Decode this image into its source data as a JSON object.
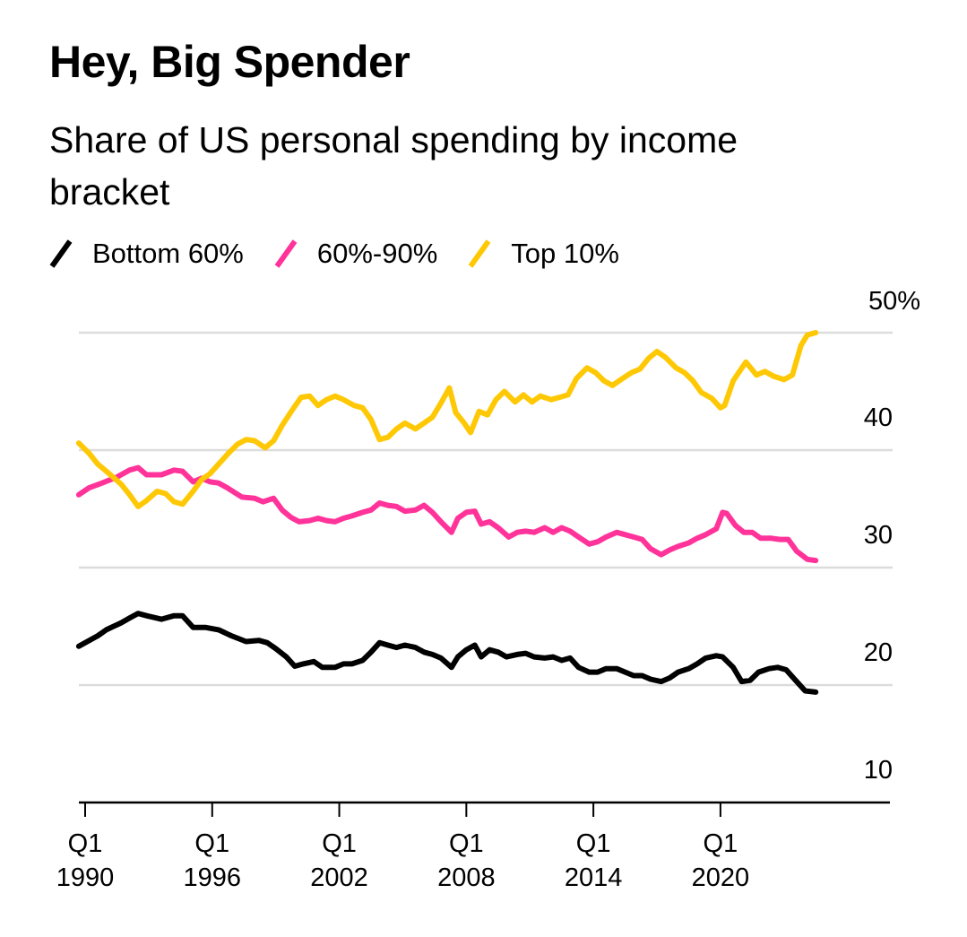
{
  "chart_data": {
    "type": "line",
    "title": "Hey, Big Spender",
    "subtitle": "Share of US personal spending by income bracket",
    "xlabel": "",
    "ylabel": "",
    "xlim": [
      1989.7,
      2025
    ],
    "ylim": [
      10,
      50
    ],
    "grid": true,
    "legend_position": "top-left",
    "x_ticks": [
      {
        "year": 1990,
        "line1": "Q1",
        "line2": "1990"
      },
      {
        "year": 1996,
        "line1": "Q1",
        "line2": "1996"
      },
      {
        "year": 2002,
        "line1": "Q1",
        "line2": "2002"
      },
      {
        "year": 2008,
        "line1": "Q1",
        "line2": "2008"
      },
      {
        "year": 2014,
        "line1": "Q1",
        "line2": "2014"
      },
      {
        "year": 2020,
        "line1": "Q1",
        "line2": "2020"
      }
    ],
    "y_ticks": [
      {
        "value": 50,
        "label": "50%"
      },
      {
        "value": 40,
        "label": "40"
      },
      {
        "value": 30,
        "label": "30"
      },
      {
        "value": 20,
        "label": "20"
      },
      {
        "value": 10,
        "label": "10"
      }
    ],
    "series": [
      {
        "name": "Bottom 60%",
        "color": "#000000",
        "points": [
          [
            1989.7,
            23.3
          ],
          [
            1990.2,
            23.8
          ],
          [
            1990.6,
            24.2
          ],
          [
            1991.0,
            24.7
          ],
          [
            1991.7,
            25.3
          ],
          [
            1992.1,
            25.7
          ],
          [
            1992.5,
            26.1
          ],
          [
            1992.9,
            25.9
          ],
          [
            1993.6,
            25.6
          ],
          [
            1994.2,
            25.9
          ],
          [
            1994.6,
            25.9
          ],
          [
            1995.1,
            24.9
          ],
          [
            1995.7,
            24.9
          ],
          [
            1996.3,
            24.7
          ],
          [
            1996.9,
            24.2
          ],
          [
            1997.6,
            23.7
          ],
          [
            1998.2,
            23.8
          ],
          [
            1998.6,
            23.6
          ],
          [
            1999.0,
            23.1
          ],
          [
            1999.5,
            22.4
          ],
          [
            1999.9,
            21.6
          ],
          [
            2000.3,
            21.8
          ],
          [
            2000.8,
            22.0
          ],
          [
            2001.2,
            21.5
          ],
          [
            2001.8,
            21.5
          ],
          [
            2002.2,
            21.8
          ],
          [
            2002.6,
            21.8
          ],
          [
            2003.1,
            22.1
          ],
          [
            2003.5,
            22.8
          ],
          [
            2003.9,
            23.6
          ],
          [
            2004.3,
            23.4
          ],
          [
            2004.7,
            23.2
          ],
          [
            2005.1,
            23.4
          ],
          [
            2005.6,
            23.2
          ],
          [
            2006.0,
            22.8
          ],
          [
            2006.4,
            22.6
          ],
          [
            2006.8,
            22.3
          ],
          [
            2007.3,
            21.5
          ],
          [
            2007.6,
            22.4
          ],
          [
            2008.0,
            23.0
          ],
          [
            2008.4,
            23.4
          ],
          [
            2008.7,
            22.4
          ],
          [
            2009.1,
            23.0
          ],
          [
            2009.5,
            22.8
          ],
          [
            2009.9,
            22.4
          ],
          [
            2010.4,
            22.6
          ],
          [
            2010.8,
            22.7
          ],
          [
            2011.2,
            22.4
          ],
          [
            2011.7,
            22.3
          ],
          [
            2012.1,
            22.4
          ],
          [
            2012.5,
            22.1
          ],
          [
            2012.9,
            22.3
          ],
          [
            2013.3,
            21.5
          ],
          [
            2013.8,
            21.1
          ],
          [
            2014.2,
            21.1
          ],
          [
            2014.6,
            21.4
          ],
          [
            2015.1,
            21.4
          ],
          [
            2015.5,
            21.1
          ],
          [
            2015.9,
            20.8
          ],
          [
            2016.3,
            20.8
          ],
          [
            2016.7,
            20.5
          ],
          [
            2017.2,
            20.3
          ],
          [
            2017.6,
            20.6
          ],
          [
            2018.0,
            21.1
          ],
          [
            2018.5,
            21.4
          ],
          [
            2018.9,
            21.8
          ],
          [
            2019.3,
            22.3
          ],
          [
            2019.8,
            22.5
          ],
          [
            2020.1,
            22.4
          ],
          [
            2020.6,
            21.5
          ],
          [
            2021.0,
            20.3
          ],
          [
            2021.4,
            20.4
          ],
          [
            2021.8,
            21.1
          ],
          [
            2022.3,
            21.4
          ],
          [
            2022.7,
            21.5
          ],
          [
            2023.1,
            21.3
          ],
          [
            2023.5,
            20.5
          ],
          [
            2024.0,
            19.5
          ],
          [
            2024.5,
            19.4
          ]
        ]
      },
      {
        "name": "60%-90%",
        "color": "#FF3399",
        "points": [
          [
            1989.7,
            36.2
          ],
          [
            1990.2,
            36.8
          ],
          [
            1990.8,
            37.2
          ],
          [
            1991.5,
            37.7
          ],
          [
            1992.1,
            38.3
          ],
          [
            1992.5,
            38.5
          ],
          [
            1992.9,
            37.9
          ],
          [
            1993.6,
            37.9
          ],
          [
            1994.2,
            38.3
          ],
          [
            1994.6,
            38.2
          ],
          [
            1995.1,
            37.3
          ],
          [
            1995.5,
            37.6
          ],
          [
            1995.9,
            37.3
          ],
          [
            1996.3,
            37.2
          ],
          [
            1996.7,
            36.8
          ],
          [
            1997.4,
            36.0
          ],
          [
            1998.0,
            35.9
          ],
          [
            1998.4,
            35.6
          ],
          [
            1998.9,
            35.9
          ],
          [
            1999.3,
            34.9
          ],
          [
            1999.7,
            34.3
          ],
          [
            2000.1,
            33.9
          ],
          [
            2000.6,
            34.0
          ],
          [
            2001.0,
            34.2
          ],
          [
            2001.4,
            34.0
          ],
          [
            2001.8,
            33.9
          ],
          [
            2002.2,
            34.2
          ],
          [
            2002.6,
            34.4
          ],
          [
            2003.1,
            34.7
          ],
          [
            2003.5,
            34.9
          ],
          [
            2003.9,
            35.5
          ],
          [
            2004.3,
            35.3
          ],
          [
            2004.7,
            35.2
          ],
          [
            2005.1,
            34.8
          ],
          [
            2005.6,
            34.9
          ],
          [
            2006.0,
            35.3
          ],
          [
            2006.4,
            34.7
          ],
          [
            2006.8,
            33.9
          ],
          [
            2007.3,
            33.0
          ],
          [
            2007.6,
            34.2
          ],
          [
            2008.0,
            34.7
          ],
          [
            2008.4,
            34.8
          ],
          [
            2008.7,
            33.7
          ],
          [
            2009.1,
            33.9
          ],
          [
            2009.5,
            33.4
          ],
          [
            2010.0,
            32.6
          ],
          [
            2010.4,
            33.0
          ],
          [
            2010.8,
            33.1
          ],
          [
            2011.2,
            33.0
          ],
          [
            2011.7,
            33.4
          ],
          [
            2012.1,
            33.0
          ],
          [
            2012.5,
            33.4
          ],
          [
            2012.9,
            33.1
          ],
          [
            2013.3,
            32.6
          ],
          [
            2013.8,
            32.0
          ],
          [
            2014.2,
            32.2
          ],
          [
            2014.6,
            32.6
          ],
          [
            2015.1,
            33.0
          ],
          [
            2015.5,
            32.8
          ],
          [
            2015.9,
            32.6
          ],
          [
            2016.3,
            32.4
          ],
          [
            2016.7,
            31.6
          ],
          [
            2017.2,
            31.1
          ],
          [
            2017.6,
            31.5
          ],
          [
            2018.0,
            31.8
          ],
          [
            2018.5,
            32.1
          ],
          [
            2018.9,
            32.5
          ],
          [
            2019.3,
            32.8
          ],
          [
            2019.8,
            33.3
          ],
          [
            2020.1,
            34.7
          ],
          [
            2020.3,
            34.6
          ],
          [
            2020.7,
            33.6
          ],
          [
            2021.1,
            33.0
          ],
          [
            2021.5,
            33.0
          ],
          [
            2021.9,
            32.5
          ],
          [
            2022.4,
            32.5
          ],
          [
            2022.8,
            32.4
          ],
          [
            2023.2,
            32.4
          ],
          [
            2023.6,
            31.4
          ],
          [
            2024.1,
            30.7
          ],
          [
            2024.5,
            30.6
          ]
        ]
      },
      {
        "name": "Top 10%",
        "color": "#FFC805",
        "points": [
          [
            1989.7,
            40.6
          ],
          [
            1990.2,
            39.7
          ],
          [
            1990.6,
            38.8
          ],
          [
            1991.0,
            38.2
          ],
          [
            1991.7,
            37.1
          ],
          [
            1992.1,
            36.2
          ],
          [
            1992.5,
            35.2
          ],
          [
            1992.9,
            35.7
          ],
          [
            1993.4,
            36.5
          ],
          [
            1993.8,
            36.3
          ],
          [
            1994.2,
            35.6
          ],
          [
            1994.6,
            35.4
          ],
          [
            1995.1,
            36.5
          ],
          [
            1995.5,
            37.5
          ],
          [
            1995.9,
            38.0
          ],
          [
            1996.3,
            38.8
          ],
          [
            1996.8,
            39.8
          ],
          [
            1997.2,
            40.5
          ],
          [
            1997.6,
            40.9
          ],
          [
            1998.0,
            40.8
          ],
          [
            1998.5,
            40.2
          ],
          [
            1998.9,
            40.8
          ],
          [
            1999.3,
            42.1
          ],
          [
            1999.7,
            43.2
          ],
          [
            2000.2,
            44.5
          ],
          [
            2000.6,
            44.6
          ],
          [
            2001.0,
            43.8
          ],
          [
            2001.4,
            44.3
          ],
          [
            2001.8,
            44.6
          ],
          [
            2002.2,
            44.3
          ],
          [
            2002.7,
            43.8
          ],
          [
            2003.1,
            43.6
          ],
          [
            2003.5,
            42.6
          ],
          [
            2003.9,
            40.9
          ],
          [
            2004.3,
            41.1
          ],
          [
            2004.7,
            41.8
          ],
          [
            2005.1,
            42.3
          ],
          [
            2005.6,
            41.8
          ],
          [
            2006.0,
            42.3
          ],
          [
            2006.4,
            42.8
          ],
          [
            2006.8,
            44.0
          ],
          [
            2007.2,
            45.3
          ],
          [
            2007.5,
            43.2
          ],
          [
            2007.9,
            42.3
          ],
          [
            2008.2,
            41.5
          ],
          [
            2008.6,
            43.3
          ],
          [
            2009.0,
            43.0
          ],
          [
            2009.4,
            44.3
          ],
          [
            2009.8,
            45.0
          ],
          [
            2010.3,
            44.1
          ],
          [
            2010.7,
            44.7
          ],
          [
            2011.1,
            44.1
          ],
          [
            2011.5,
            44.6
          ],
          [
            2012.0,
            44.3
          ],
          [
            2012.4,
            44.5
          ],
          [
            2012.8,
            44.7
          ],
          [
            2013.2,
            46.1
          ],
          [
            2013.7,
            47.0
          ],
          [
            2014.1,
            46.6
          ],
          [
            2014.5,
            45.9
          ],
          [
            2014.9,
            45.5
          ],
          [
            2015.3,
            46.0
          ],
          [
            2015.8,
            46.6
          ],
          [
            2016.2,
            46.9
          ],
          [
            2016.6,
            47.8
          ],
          [
            2017.0,
            48.4
          ],
          [
            2017.4,
            47.9
          ],
          [
            2017.9,
            47.0
          ],
          [
            2018.3,
            46.6
          ],
          [
            2018.7,
            45.9
          ],
          [
            2019.1,
            44.9
          ],
          [
            2019.6,
            44.4
          ],
          [
            2020.0,
            43.6
          ],
          [
            2020.2,
            43.8
          ],
          [
            2020.6,
            45.9
          ],
          [
            2020.9,
            46.7
          ],
          [
            2021.2,
            47.5
          ],
          [
            2021.7,
            46.4
          ],
          [
            2022.1,
            46.7
          ],
          [
            2022.5,
            46.3
          ],
          [
            2023.0,
            46.0
          ],
          [
            2023.4,
            46.4
          ],
          [
            2023.8,
            48.9
          ],
          [
            2024.1,
            49.8
          ],
          [
            2024.5,
            50.0
          ]
        ]
      }
    ]
  }
}
